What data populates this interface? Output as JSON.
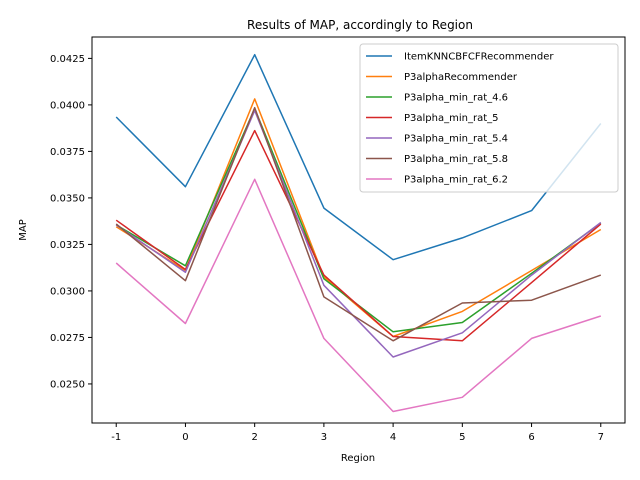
{
  "chart_data": {
    "type": "line",
    "title": "Results of MAP, accordingly to Region",
    "xlabel": "Region",
    "ylabel": "MAP",
    "x": [
      "-1",
      "0",
      "2",
      "3",
      "4",
      "5",
      "6",
      "7"
    ],
    "xlim": [
      -0.35,
      7.35
    ],
    "ylim": [
      0.0229,
      0.04365
    ],
    "yticks": [
      0.025,
      0.0275,
      0.03,
      0.0325,
      0.035,
      0.0375,
      0.04,
      0.0425
    ],
    "ytick_labels": [
      "0.0250",
      "0.0275",
      "0.0300",
      "0.0325",
      "0.0350",
      "0.0375",
      "0.0400",
      "0.0425"
    ],
    "grid": false,
    "legend_position": "top-right",
    "series": [
      {
        "name": "ItemKNNCBFCFRecommender",
        "color": "#1f77b4",
        "values": [
          0.03935,
          0.0356,
          0.0427,
          0.03445,
          0.03168,
          0.03285,
          0.03432,
          0.039
        ]
      },
      {
        "name": "P3alphaRecommender",
        "color": "#ff7f0e",
        "values": [
          0.03345,
          0.0311,
          0.04032,
          0.03075,
          0.02755,
          0.0289,
          0.0311,
          0.0333
        ]
      },
      {
        "name": "P3alpha_min_rat_4.6",
        "color": "#2ca02c",
        "values": [
          0.03355,
          0.03135,
          0.0398,
          0.03065,
          0.0278,
          0.0283,
          0.03095,
          0.03365
        ]
      },
      {
        "name": "P3alpha_min_rat_5",
        "color": "#d62728",
        "values": [
          0.0338,
          0.03115,
          0.03862,
          0.03085,
          0.02755,
          0.02732,
          0.03045,
          0.0336
        ]
      },
      {
        "name": "P3alpha_min_rat_5.4",
        "color": "#9467bd",
        "values": [
          0.03355,
          0.031,
          0.0397,
          0.0303,
          0.02645,
          0.02775,
          0.03085,
          0.03368
        ]
      },
      {
        "name": "P3alpha_min_rat_5.8",
        "color": "#8c564b",
        "values": [
          0.0336,
          0.03055,
          0.03985,
          0.02968,
          0.02732,
          0.02935,
          0.0295,
          0.03085
        ]
      },
      {
        "name": "P3alpha_min_rat_6.2",
        "color": "#e377c2",
        "values": [
          0.0315,
          0.02825,
          0.036,
          0.02745,
          0.02352,
          0.02428,
          0.02745,
          0.02865
        ]
      }
    ]
  }
}
